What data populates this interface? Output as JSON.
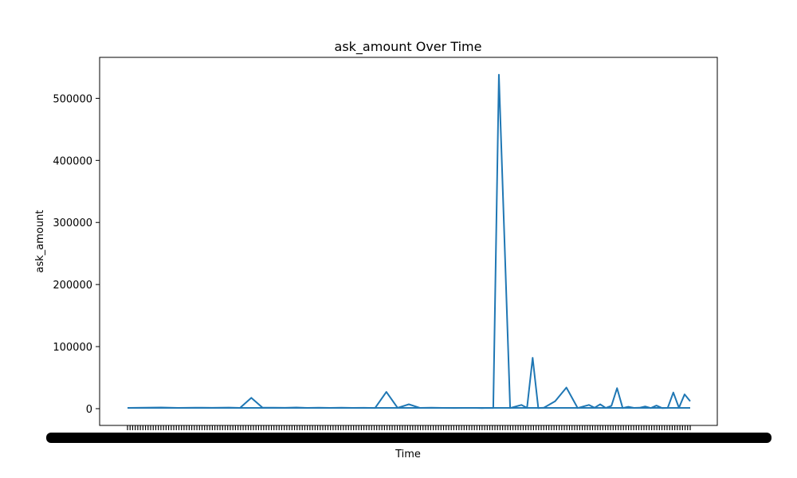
{
  "chart_data": {
    "type": "line",
    "title": "ask_amount Over Time",
    "xlabel": "Time",
    "ylabel": "ask_amount",
    "ylim": [
      -27000,
      566000
    ],
    "yticks": [
      0,
      100000,
      200000,
      300000,
      400000,
      500000
    ],
    "ytick_labels": [
      "0",
      "100000",
      "200000",
      "300000",
      "400000",
      "500000"
    ],
    "grid": false,
    "legend": "none",
    "x_tick_labels_note": "",
    "series": [
      {
        "color": "#1f77b4",
        "x": [
          0,
          3,
          6,
          9,
          12,
          15,
          18,
          20,
          22,
          24,
          26,
          28,
          30,
          32,
          34,
          36,
          38,
          40,
          42,
          44,
          46,
          48,
          50,
          52,
          54,
          56,
          58,
          60,
          61,
          62,
          63,
          64,
          65,
          66,
          68,
          70,
          71,
          72,
          73,
          74,
          76,
          78,
          80,
          82,
          83,
          84,
          85,
          86,
          87,
          88,
          89,
          90,
          91,
          92,
          93,
          94,
          95,
          96,
          97,
          98,
          99,
          100
        ],
        "values": [
          1200,
          1500,
          1800,
          1300,
          1600,
          1400,
          1700,
          1300,
          17500,
          1600,
          1500,
          1400,
          1800,
          1200,
          1500,
          1300,
          1600,
          1200,
          1400,
          1100,
          27000,
          1300,
          7000,
          1200,
          1500,
          1200,
          1100,
          1300,
          1300,
          1200,
          1000,
          1200,
          1100,
          538000,
          1000,
          6000,
          1200,
          82000,
          1000,
          1500,
          12000,
          34000,
          1000,
          6000,
          1500,
          7000,
          1200,
          4500,
          33000,
          1000,
          3000,
          1200,
          1500,
          3500,
          1000,
          5000,
          1000,
          1200,
          26000,
          1500,
          23000,
          12000
        ]
      }
    ]
  }
}
